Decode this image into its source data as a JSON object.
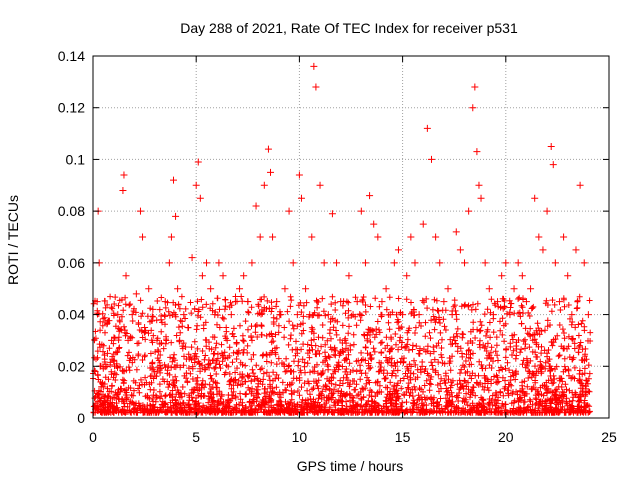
{
  "chart_data": {
    "type": "scatter",
    "title": "Day 288 of 2021, Rate Of TEC Index for receiver p531",
    "xlabel": "GPS time / hours",
    "ylabel": "ROTI / TECUs",
    "xlim": [
      0,
      25
    ],
    "ylim": [
      0,
      0.14
    ],
    "x_ticks": [
      0,
      5,
      10,
      15,
      20,
      25
    ],
    "x_tick_labels": [
      "0",
      "5",
      "10",
      "15",
      "20",
      "25"
    ],
    "y_ticks": [
      0,
      0.02,
      0.04,
      0.06,
      0.08,
      0.1,
      0.12,
      0.14
    ],
    "y_tick_labels": [
      "0",
      "0.02",
      "0.04",
      "0.06",
      "0.08",
      "0.1",
      "0.12",
      "0.14"
    ],
    "grid": true,
    "marker": "+",
    "color": "#ff0000",
    "series": [
      {
        "x": [
          0.1,
          0.2,
          0.25,
          0.3,
          0.35,
          0.5,
          0.7,
          0.9,
          1.0,
          1.2,
          1.45,
          1.5,
          1.6,
          1.7,
          1.9,
          2.1,
          2.3,
          2.4,
          2.5,
          2.7,
          2.9,
          3.1,
          3.3,
          3.5,
          3.7,
          3.8,
          3.9,
          4.0,
          4.1,
          4.2,
          4.4,
          4.6,
          4.8,
          5.0,
          5.1,
          5.2,
          5.3,
          5.5,
          5.7,
          5.9,
          6.1,
          6.3,
          6.5,
          6.7,
          6.9,
          7.1,
          7.3,
          7.5,
          7.7,
          7.9,
          8.1,
          8.3,
          8.5,
          8.6,
          8.7,
          8.9,
          9.1,
          9.3,
          9.5,
          9.7,
          9.9,
          10.0,
          10.1,
          10.3,
          10.5,
          10.6,
          10.7,
          10.8,
          11.0,
          11.2,
          11.4,
          11.6,
          11.8,
          12.0,
          12.2,
          12.4,
          12.6,
          12.8,
          13.0,
          13.2,
          13.4,
          13.6,
          13.8,
          14.0,
          14.2,
          14.4,
          14.6,
          14.8,
          15.0,
          15.2,
          15.4,
          15.6,
          15.8,
          16.0,
          16.2,
          16.4,
          16.6,
          16.8,
          17.0,
          17.2,
          17.4,
          17.6,
          17.8,
          18.0,
          18.2,
          18.4,
          18.5,
          18.6,
          18.7,
          18.8,
          19.0,
          19.2,
          19.4,
          19.6,
          19.8,
          20.0,
          20.2,
          20.4,
          20.6,
          20.8,
          21.0,
          21.2,
          21.4,
          21.6,
          21.8,
          22.0,
          22.2,
          22.3,
          22.4,
          22.6,
          22.8,
          23.0,
          23.2,
          23.4,
          23.6,
          23.8,
          24.0
        ],
        "y": [
          0.018,
          0.045,
          0.08,
          0.06,
          0.02,
          0.012,
          0.025,
          0.03,
          0.022,
          0.04,
          0.088,
          0.094,
          0.055,
          0.03,
          0.04,
          0.048,
          0.08,
          0.07,
          0.035,
          0.05,
          0.042,
          0.03,
          0.038,
          0.045,
          0.06,
          0.07,
          0.092,
          0.078,
          0.05,
          0.03,
          0.04,
          0.035,
          0.062,
          0.09,
          0.099,
          0.085,
          0.055,
          0.06,
          0.05,
          0.04,
          0.06,
          0.055,
          0.03,
          0.04,
          0.045,
          0.05,
          0.055,
          0.045,
          0.06,
          0.082,
          0.07,
          0.09,
          0.104,
          0.095,
          0.07,
          0.045,
          0.04,
          0.05,
          0.08,
          0.06,
          0.04,
          0.094,
          0.085,
          0.05,
          0.04,
          0.07,
          0.136,
          0.128,
          0.09,
          0.06,
          0.04,
          0.079,
          0.06,
          0.045,
          0.03,
          0.055,
          0.04,
          0.045,
          0.08,
          0.06,
          0.086,
          0.075,
          0.07,
          0.045,
          0.05,
          0.04,
          0.06,
          0.065,
          0.04,
          0.055,
          0.07,
          0.06,
          0.04,
          0.075,
          0.112,
          0.1,
          0.07,
          0.06,
          0.045,
          0.05,
          0.04,
          0.072,
          0.065,
          0.06,
          0.08,
          0.12,
          0.128,
          0.103,
          0.09,
          0.085,
          0.06,
          0.05,
          0.04,
          0.045,
          0.055,
          0.06,
          0.04,
          0.05,
          0.06,
          0.055,
          0.045,
          0.05,
          0.085,
          0.07,
          0.065,
          0.08,
          0.105,
          0.098,
          0.06,
          0.045,
          0.07,
          0.055,
          0.04,
          0.065,
          0.09,
          0.06,
          0.04
        ]
      }
    ]
  }
}
